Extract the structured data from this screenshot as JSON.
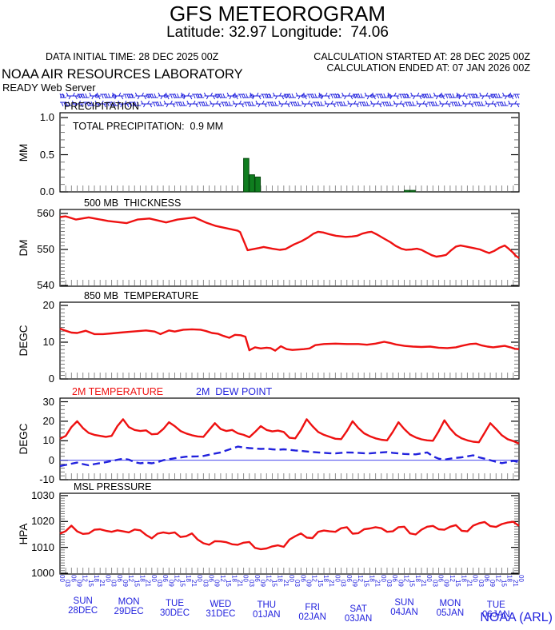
{
  "header": {
    "title": "GFS METEOROGRAM",
    "subtitle": "Latitude: 32.97 Longitude:  74.06",
    "data_initial": "DATA INITIAL TIME: 28 DEC 2025 00Z",
    "calc_started": "CALCULATION STARTED AT: 28 DEC 2025 00Z",
    "calc_ended": "CALCULATION ENDED AT: 07 JAN 2026 00Z",
    "org": "NOAA AIR RESOURCES LABORATORY",
    "server": "READY Web Server"
  },
  "footer": {
    "credit": "NOAA (ARL)"
  },
  "colors": {
    "red": "#ee1111",
    "blue": "#2222dd",
    "green_fill": "#0f7d1f",
    "green_edge": "#05470e",
    "frame": "#000000",
    "minor_tick": "#555555",
    "time_tick": "#8c8c8c",
    "zero_line": "#4444ee"
  },
  "wind_barbs": {
    "rows": 2,
    "per_row": 80,
    "color": "#2222dd",
    "description": "surface wind barb strip"
  },
  "x_axis": {
    "steps": 80,
    "hours_per_step": 3,
    "hours_cycle": [
      "00",
      "03",
      "06",
      "09",
      "12",
      "15",
      "18",
      "21"
    ],
    "days": [
      {
        "dow": "SUN",
        "date": "28DEC"
      },
      {
        "dow": "MON",
        "date": "29DEC"
      },
      {
        "dow": "TUE",
        "date": "30DEC"
      },
      {
        "dow": "WED",
        "date": "31DEC"
      },
      {
        "dow": "THU",
        "date": "01JAN"
      },
      {
        "dow": "FRI",
        "date": "02JAN"
      },
      {
        "dow": "SAT",
        "date": "03JAN"
      },
      {
        "dow": "SUN",
        "date": "04JAN"
      },
      {
        "dow": "MON",
        "date": "05JAN"
      },
      {
        "dow": "TUE",
        "date": "06JAN"
      }
    ]
  },
  "chart_data": [
    {
      "id": "precip",
      "type": "bar",
      "title": "PRECIPITATION",
      "annotation": "TOTAL PRECIPITATION:  0.9 MM",
      "ylabel": "MM",
      "yticks": [
        {
          "v": 1.0,
          "label": "1.0"
        },
        {
          "v": 0.5,
          "label": "0.5"
        },
        {
          "v": 0.0,
          "label": "0.0"
        }
      ],
      "ylim": [
        0,
        1.065
      ],
      "minor": 0.1,
      "bars": [
        [
          32,
          0.45
        ],
        [
          33,
          0.23
        ],
        [
          34,
          0.2
        ],
        [
          60,
          0.02
        ],
        [
          61,
          0.02
        ]
      ]
    },
    {
      "id": "thickness500",
      "type": "line",
      "title": "500 MB  THICKNESS",
      "ylabel": "DM",
      "yticks": [
        {
          "v": 560,
          "label": "560"
        },
        {
          "v": 550,
          "label": "550"
        },
        {
          "v": 540,
          "label": "540"
        }
      ],
      "ylim": [
        539.8,
        561.1
      ],
      "minor": 1,
      "series": [
        {
          "name": "500mb_thickness_dm",
          "color": "red",
          "style": "solid",
          "points": [
            [
              0,
              559
            ],
            [
              1,
              559.2
            ],
            [
              2.8,
              558.3
            ],
            [
              5,
              558.9
            ],
            [
              8.4,
              557.9
            ],
            [
              11.6,
              557.3
            ],
            [
              13.5,
              558.3
            ],
            [
              15.6,
              558.6
            ],
            [
              18.5,
              557.5
            ],
            [
              20.5,
              558.3
            ],
            [
              23.4,
              558.9
            ],
            [
              25.4,
              557.5
            ],
            [
              27.2,
              556.5
            ],
            [
              29.3,
              555.8
            ],
            [
              31,
              555.2
            ],
            [
              31.4,
              554.8
            ],
            [
              32.7,
              549.8
            ],
            [
              34.7,
              550.4
            ],
            [
              35.5,
              550.7
            ],
            [
              37,
              550.2
            ],
            [
              38.3,
              549.9
            ],
            [
              39.3,
              550.1
            ],
            [
              40.8,
              551.4
            ],
            [
              42.1,
              552.3
            ],
            [
              43.2,
              553.3
            ],
            [
              44.2,
              554.4
            ],
            [
              45,
              554.9
            ],
            [
              45.9,
              554.7
            ],
            [
              47,
              554.2
            ],
            [
              48.1,
              553.8
            ],
            [
              49.8,
              553.5
            ],
            [
              50.9,
              553.6
            ],
            [
              51.8,
              553.8
            ],
            [
              52.7,
              554.4
            ],
            [
              53.7,
              554.8
            ],
            [
              54.3,
              554.9
            ],
            [
              55.3,
              554.1
            ],
            [
              56.4,
              553.1
            ],
            [
              57.6,
              552
            ],
            [
              58.5,
              551
            ],
            [
              59.5,
              550.2
            ],
            [
              60.3,
              549.9
            ],
            [
              61.3,
              550
            ],
            [
              62.2,
              550.2
            ],
            [
              63,
              549.9
            ],
            [
              63.8,
              549.2
            ],
            [
              64.8,
              548.4
            ],
            [
              65.6,
              548
            ],
            [
              66.5,
              548.2
            ],
            [
              67.3,
              548.5
            ],
            [
              68.2,
              549.8
            ],
            [
              69,
              550.8
            ],
            [
              69.8,
              551.1
            ],
            [
              70.8,
              550.8
            ],
            [
              72,
              550.4
            ],
            [
              73.2,
              550
            ],
            [
              74.1,
              549.4
            ],
            [
              74.8,
              549
            ],
            [
              75.7,
              549.6
            ],
            [
              76.6,
              550.5
            ],
            [
              77.5,
              551.1
            ],
            [
              78.2,
              550.2
            ],
            [
              78.9,
              549.2
            ],
            [
              79.4,
              548.3
            ],
            [
              80,
              547.6
            ]
          ]
        }
      ]
    },
    {
      "id": "temp850",
      "type": "line",
      "title": "850 MB  TEMPERATURE",
      "ylabel": "DEGC",
      "yticks": [
        {
          "v": 20,
          "label": "20"
        },
        {
          "v": 10,
          "label": "10"
        },
        {
          "v": 0,
          "label": "0"
        }
      ],
      "ylim": [
        0,
        20.87
      ],
      "minor": 1,
      "series": [
        {
          "name": "temp_850mb_degc",
          "color": "red",
          "style": "solid",
          "points": [
            [
              0,
              13.7
            ],
            [
              1,
              13.1
            ],
            [
              2,
              12.6
            ],
            [
              3,
              12.5
            ],
            [
              4.5,
              13.1
            ],
            [
              6,
              12.2
            ],
            [
              7.5,
              12.2
            ],
            [
              9,
              12.4
            ],
            [
              10.5,
              12.6
            ],
            [
              12,
              12.8
            ],
            [
              13.5,
              13
            ],
            [
              15,
              13.2
            ],
            [
              16.5,
              12.9
            ],
            [
              17.5,
              12.2
            ],
            [
              19,
              13.2
            ],
            [
              20,
              12.9
            ],
            [
              21.5,
              13.4
            ],
            [
              23,
              13.5
            ],
            [
              24.5,
              13.4
            ],
            [
              25.5,
              13
            ],
            [
              26.5,
              12.5
            ],
            [
              27.5,
              12.3
            ],
            [
              28.5,
              11.7
            ],
            [
              29.5,
              11.2
            ],
            [
              30.5,
              12
            ],
            [
              31.5,
              11.9
            ],
            [
              32.3,
              11.5
            ],
            [
              33,
              7.8
            ],
            [
              34,
              8.6
            ],
            [
              35,
              8.3
            ],
            [
              36,
              8.5
            ],
            [
              36.7,
              8.4
            ],
            [
              37.5,
              7.7
            ],
            [
              38.5,
              8.9
            ],
            [
              39.5,
              8.1
            ],
            [
              40.5,
              7.9
            ],
            [
              41.5,
              8
            ],
            [
              42.5,
              8.1
            ],
            [
              43.5,
              8.3
            ],
            [
              44.5,
              9.2
            ],
            [
              46,
              9.5
            ],
            [
              48,
              9.6
            ],
            [
              50,
              9.5
            ],
            [
              52,
              9.5
            ],
            [
              53.5,
              9.3
            ],
            [
              55,
              9.6
            ],
            [
              56.5,
              10.1
            ],
            [
              57.5,
              9.8
            ],
            [
              58.5,
              9.4
            ],
            [
              60,
              9
            ],
            [
              61.5,
              8.8
            ],
            [
              63,
              8.7
            ],
            [
              64.5,
              8.8
            ],
            [
              66,
              8.5
            ],
            [
              67.5,
              8.4
            ],
            [
              69,
              8.6
            ],
            [
              70,
              9
            ],
            [
              71.5,
              9.5
            ],
            [
              72.5,
              9.6
            ],
            [
              73.5,
              9.1
            ],
            [
              74.5,
              8.8
            ],
            [
              75.5,
              8.6
            ],
            [
              76.5,
              8.8
            ],
            [
              77.5,
              9
            ],
            [
              78.5,
              8.6
            ],
            [
              79.3,
              8.2
            ],
            [
              80,
              8.1
            ]
          ]
        }
      ]
    },
    {
      "id": "temp2m",
      "type": "line",
      "legend": [
        {
          "label": "2M TEMPERATURE",
          "color": "red"
        },
        {
          "label": "2M  DEW POINT",
          "color": "blue"
        }
      ],
      "ylabel": "DEGC",
      "yticks": [
        {
          "v": 30,
          "label": "30"
        },
        {
          "v": 20,
          "label": "20"
        },
        {
          "v": 10,
          "label": "10"
        },
        {
          "v": 0,
          "label": "0"
        },
        {
          "v": -10,
          "label": "-10"
        }
      ],
      "ylim": [
        -10,
        31.85
      ],
      "minor": 2,
      "zero_line": 0,
      "series": [
        {
          "name": "temp_2m_degc",
          "color": "red",
          "style": "solid",
          "values": [
            11,
            12.5,
            17,
            20,
            16.5,
            14,
            13,
            12.5,
            12,
            12.5,
            17.5,
            21,
            17,
            15.5,
            15,
            15.3,
            13.3,
            13.5,
            16,
            19.5,
            17.5,
            15,
            13.7,
            12.8,
            12.2,
            12,
            15.5,
            19,
            16,
            15,
            15.5,
            13.8,
            13,
            11.8,
            14.5,
            17.5,
            15.5,
            14.8,
            15.2,
            14.5,
            11.5,
            11.2,
            15.5,
            21,
            17.5,
            14.5,
            13,
            12,
            11,
            10.8,
            15,
            20,
            16.5,
            13.8,
            12.3,
            11.2,
            10.5,
            10.2,
            14.5,
            19.5,
            16,
            13.2,
            11.7,
            10.7,
            10.2,
            10,
            14.8,
            20.5,
            16.2,
            13,
            11.2,
            10.2,
            9.5,
            9.2,
            14,
            19,
            16,
            12.8,
            10.8,
            9.8,
            8.5
          ]
        },
        {
          "name": "dewpoint_2m_degc",
          "color": "blue",
          "style": "dashed",
          "values": [
            -3,
            -2.4,
            -1.8,
            -1.2,
            -2,
            -2.6,
            -2,
            -1.5,
            -1,
            -0.4,
            0.2,
            0.8,
            0.3,
            -1,
            -1.6,
            -1.2,
            -1.6,
            -1,
            0,
            0.5,
            1,
            1.4,
            1.8,
            1.9,
            2,
            2.2,
            2.8,
            3.4,
            4,
            5,
            6,
            7,
            6.5,
            6.2,
            6,
            5.8,
            5.9,
            5.6,
            5.4,
            5.6,
            5.3,
            5,
            4.8,
            4.5,
            4.2,
            4,
            3.8,
            3.6,
            3.5,
            3.8,
            4,
            3.9,
            3.8,
            3.6,
            3.5,
            3.8,
            4,
            4.2,
            3.8,
            3.5,
            3.2,
            3.1,
            3,
            3.5,
            4,
            2,
            0.8,
            0.3,
            0.8,
            1.2,
            1.5,
            2,
            2.5,
            1.5,
            0.8,
            0,
            -0.8,
            -1.5,
            -1,
            -0.3,
            -1
          ]
        }
      ]
    },
    {
      "id": "mslp",
      "type": "line",
      "title": "MSL PRESSURE",
      "ylabel": "HPA",
      "yticks": [
        {
          "v": 1030,
          "label": "1030"
        },
        {
          "v": 1020,
          "label": "1020"
        },
        {
          "v": 1010,
          "label": "1010"
        },
        {
          "v": 1000,
          "label": "1000"
        }
      ],
      "ylim": [
        999.7,
        1030.9
      ],
      "minor": 1,
      "series": [
        {
          "name": "msl_pressure_hpa",
          "color": "red",
          "style": "solid",
          "values": [
            1015.3,
            1016.3,
            1018.4,
            1016.2,
            1015.2,
            1015.4,
            1016.8,
            1017,
            1016.4,
            1016,
            1016.6,
            1016.2,
            1015.8,
            1016.9,
            1016.6,
            1014.8,
            1013.5,
            1015.3,
            1015.8,
            1015.4,
            1015.8,
            1014,
            1014.3,
            1015.4,
            1013,
            1011.6,
            1011,
            1012.4,
            1012.3,
            1012,
            1011.2,
            1011,
            1011.8,
            1012.1,
            1009.8,
            1009.3,
            1009.6,
            1010.4,
            1010.8,
            1010.2,
            1013,
            1014.3,
            1015.4,
            1013.8,
            1013.6,
            1016,
            1016.5,
            1016.2,
            1016,
            1017.4,
            1017.8,
            1015.3,
            1015.5,
            1017,
            1017.3,
            1017.8,
            1017.4,
            1016,
            1016.2,
            1017.8,
            1018,
            1015.4,
            1015,
            1016.8,
            1018,
            1018.3,
            1017,
            1016.8,
            1018,
            1018.6,
            1016.4,
            1016.2,
            1018.4,
            1019.3,
            1019.8,
            1018.2,
            1017.9,
            1019,
            1019.6,
            1019.9,
            1018.3
          ]
        }
      ]
    }
  ]
}
